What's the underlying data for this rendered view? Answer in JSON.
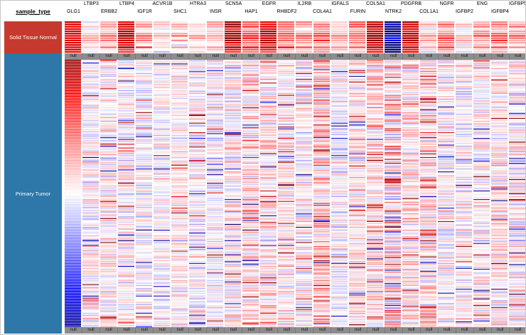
{
  "sidebar": {
    "label": "sample_type",
    "groups": [
      {
        "label": "Solid Tissue Normal",
        "color": "#c5392e"
      },
      {
        "label": "Primary Tumor",
        "color": "#2d77a9"
      }
    ]
  },
  "chart_data": {
    "type": "heatmap",
    "title": "",
    "sort_column": "GLG1",
    "null_label": "null",
    "color_scale": {
      "high": "#ff0000",
      "mid": "#ffffff",
      "low": "#0000ff",
      "extreme_high": "#690000",
      "extreme_low": "#000069",
      "domain": [
        -1.5,
        1.5
      ]
    },
    "row_groups": [
      {
        "label": "Solid Tissue Normal",
        "rows": 14
      },
      {
        "label": "null",
        "rows": 1
      },
      {
        "label": "Primary Tumor",
        "rows": 280
      },
      {
        "label": "null",
        "rows": 1
      }
    ],
    "columns": [
      {
        "name": "GLG1",
        "label_row": "lower",
        "normal_mean": 1.1,
        "tumor_mean": 0,
        "tumor_spread": 0.05,
        "streak_prob": 0,
        "gradient": true,
        "gradient_from": 1.35,
        "gradient_to": -1.35
      },
      {
        "name": "LTBP3",
        "label_row": "upper",
        "normal_mean": 0.15,
        "tumor_mean": 0.0,
        "tumor_spread": 0.5,
        "streak_prob": 0.04,
        "gradient": false
      },
      {
        "name": "ERBB2",
        "label_row": "lower",
        "normal_mean": 0.4,
        "tumor_mean": 0.05,
        "tumor_spread": 0.5,
        "streak_prob": 0.05,
        "gradient": false
      },
      {
        "name": "LTBP4",
        "label_row": "upper",
        "normal_mean": 1.2,
        "tumor_mean": 0.05,
        "tumor_spread": 0.5,
        "streak_prob": 0.05,
        "gradient": false
      },
      {
        "name": "IGF1R",
        "label_row": "lower",
        "normal_mean": 0.35,
        "tumor_mean": 0.0,
        "tumor_spread": 0.45,
        "streak_prob": 0.04,
        "gradient": false
      },
      {
        "name": "ACVR1B",
        "label_row": "upper",
        "normal_mean": 0.15,
        "tumor_mean": 0.0,
        "tumor_spread": 0.4,
        "streak_prob": 0.03,
        "gradient": false
      },
      {
        "name": "SHC1",
        "label_row": "lower",
        "normal_mean": 0.25,
        "tumor_mean": 0.05,
        "tumor_spread": 0.4,
        "streak_prob": 0.03,
        "gradient": false
      },
      {
        "name": "HTRA3",
        "label_row": "upper",
        "normal_mean": 0.2,
        "tumor_mean": 0.0,
        "tumor_spread": 0.5,
        "streak_prob": 0.05,
        "gradient": false
      },
      {
        "name": "INSR",
        "label_row": "lower",
        "normal_mean": 0.25,
        "tumor_mean": -0.05,
        "tumor_spread": 0.45,
        "streak_prob": 0.04,
        "gradient": false
      },
      {
        "name": "SCN5A",
        "label_row": "upper",
        "normal_mean": 1.25,
        "tumor_mean": 0.05,
        "tumor_spread": 0.55,
        "streak_prob": 0.06,
        "gradient": false
      },
      {
        "name": "HAP1",
        "label_row": "lower",
        "normal_mean": 0.7,
        "tumor_mean": 0.15,
        "tumor_spread": 0.6,
        "streak_prob": 0.07,
        "gradient": false
      },
      {
        "name": "EGFR",
        "label_row": "upper",
        "normal_mean": 1.15,
        "tumor_mean": 0.1,
        "tumor_spread": 0.55,
        "streak_prob": 0.06,
        "gradient": false
      },
      {
        "name": "RHBDF2",
        "label_row": "lower",
        "normal_mean": 0.65,
        "tumor_mean": 0.05,
        "tumor_spread": 0.5,
        "streak_prob": 0.05,
        "gradient": false
      },
      {
        "name": "IL2RB",
        "label_row": "upper",
        "normal_mean": 0.35,
        "tumor_mean": 0.0,
        "tumor_spread": 0.5,
        "streak_prob": 0.05,
        "gradient": false
      },
      {
        "name": "COL4A1",
        "label_row": "lower",
        "normal_mean": 0.5,
        "tumor_mean": 0.2,
        "tumor_spread": 0.6,
        "streak_prob": 0.07,
        "gradient": false
      },
      {
        "name": "IGFALS",
        "label_row": "upper",
        "normal_mean": 0.3,
        "tumor_mean": -0.05,
        "tumor_spread": 0.45,
        "streak_prob": 0.04,
        "gradient": false
      },
      {
        "name": "FURIN",
        "label_row": "lower",
        "normal_mean": 0.55,
        "tumor_mean": 0.1,
        "tumor_spread": 0.5,
        "streak_prob": 0.05,
        "gradient": false
      },
      {
        "name": "COL5A1",
        "label_row": "upper",
        "normal_mean": 1.25,
        "tumor_mean": 0.15,
        "tumor_spread": 0.6,
        "streak_prob": 0.07,
        "gradient": false
      },
      {
        "name": "NTRK2",
        "label_row": "lower",
        "normal_mean": -1.3,
        "tumor_mean": 0.15,
        "tumor_spread": 0.8,
        "streak_prob": 0.12,
        "gradient": false
      },
      {
        "name": "PDGFRB",
        "label_row": "upper",
        "normal_mean": 1.1,
        "tumor_mean": 0.1,
        "tumor_spread": 0.55,
        "streak_prob": 0.06,
        "gradient": false
      },
      {
        "name": "COL1A1",
        "label_row": "lower",
        "normal_mean": 0.25,
        "tumor_mean": 0.15,
        "tumor_spread": 0.6,
        "streak_prob": 0.07,
        "gradient": false
      },
      {
        "name": "NGFR",
        "label_row": "upper",
        "normal_mean": 0.6,
        "tumor_mean": 0.0,
        "tumor_spread": 0.5,
        "streak_prob": 0.05,
        "gradient": false
      },
      {
        "name": "IGFBP2",
        "label_row": "lower",
        "normal_mean": 0.15,
        "tumor_mean": 0.0,
        "tumor_spread": 0.5,
        "streak_prob": 0.04,
        "gradient": false
      },
      {
        "name": "ENG",
        "label_row": "upper",
        "normal_mean": 0.4,
        "tumor_mean": 0.05,
        "tumor_spread": 0.45,
        "streak_prob": 0.04,
        "gradient": false
      },
      {
        "name": "IGFBP4",
        "label_row": "lower",
        "normal_mean": 0.55,
        "tumor_mean": 0.1,
        "tumor_spread": 0.5,
        "streak_prob": 0.05,
        "gradient": false
      },
      {
        "name": "IGFBP5",
        "label_row": "upper",
        "normal_mean": 0.35,
        "tumor_mean": 0.05,
        "tumor_spread": 0.55,
        "streak_prob": 0.05,
        "gradient": false
      }
    ]
  }
}
